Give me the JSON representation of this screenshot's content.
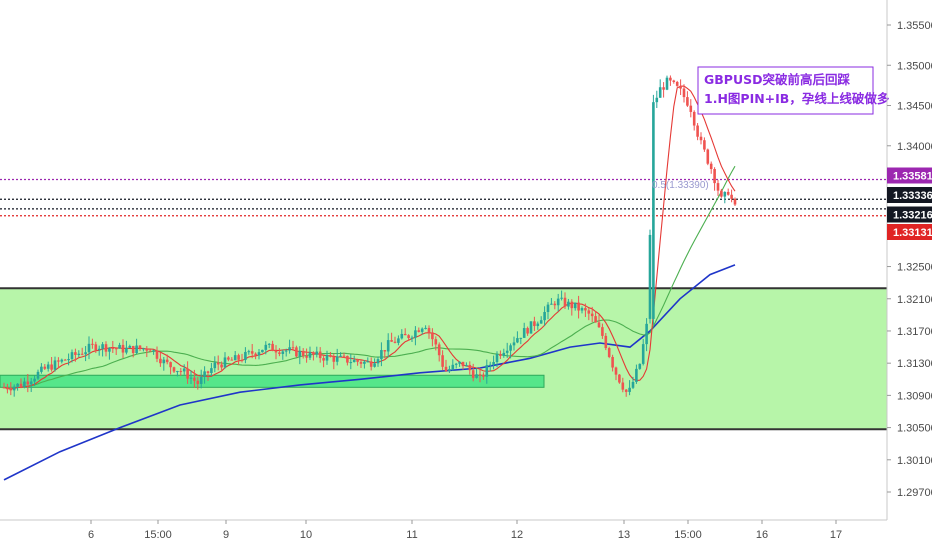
{
  "chart_data": {
    "type": "candlestick",
    "instrument": "GBPUSD",
    "annotation": {
      "line1": "GBPUSD突破前高后回踩",
      "line2": "1.H图PIN+IB，孕线上线破做多",
      "color": "#8a2be2"
    },
    "y_axis": {
      "ticks": [
        "1.35500",
        "1.35000",
        "1.34500",
        "1.34000",
        "1.32500",
        "1.32100",
        "1.31700",
        "1.31300",
        "1.30900",
        "1.30500",
        "1.30100",
        "1.29700"
      ],
      "range": [
        1.294,
        1.358
      ]
    },
    "x_axis": {
      "ticks": [
        "6",
        "15:00",
        "9",
        "10",
        "11",
        "12",
        "13",
        "15:00",
        "16",
        "17"
      ]
    },
    "price_tags": [
      {
        "value": "1.33581",
        "color": "#9c27b0"
      },
      {
        "value": "1.33336",
        "color": "#131722"
      },
      {
        "value": "1.33216",
        "color": "#131722"
      },
      {
        "value": "1.33131",
        "color": "#e02424"
      }
    ],
    "levels": {
      "purple_dotted": 1.33581,
      "black_dotted_1": 1.33336,
      "black_dotted_2": 1.33216,
      "red_dotted": 1.33131,
      "zone_top": 1.3223,
      "zone_bottom": 1.3048,
      "inner_zone_top": 1.3115,
      "inner_zone_bottom": 1.31
    },
    "fib_label": "0.5(1.33390)",
    "colors": {
      "up": "#26a69a",
      "down": "#ef5350",
      "zone_fill": "#b7f5a9",
      "inner_zone_fill": "#56e68a",
      "ma_blue": "#1f35c9",
      "ma_red": "#e53935",
      "ma_green": "#4caf50"
    }
  }
}
